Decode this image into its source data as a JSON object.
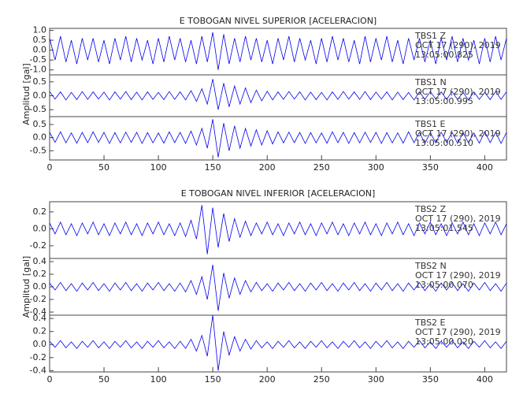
{
  "chart_data": [
    {
      "type": "waveform",
      "title": "E TOBOGAN NIVEL SUPERIOR [ACELERACION]",
      "ylabel": "Amplitud [gal]",
      "xlim": [
        0,
        420
      ],
      "xticks": [
        0,
        50,
        100,
        150,
        200,
        250,
        300,
        350,
        400
      ],
      "x": [
        0,
        5,
        10,
        15,
        20,
        25,
        30,
        35,
        40,
        45,
        50,
        55,
        60,
        65,
        70,
        75,
        80,
        85,
        90,
        95,
        100,
        105,
        110,
        115,
        120,
        125,
        130,
        135,
        140,
        145,
        150,
        155,
        160,
        165,
        170,
        175,
        180,
        185,
        190,
        195,
        200,
        205,
        210,
        215,
        220,
        225,
        230,
        235,
        240,
        245,
        250,
        255,
        260,
        265,
        270,
        275,
        280,
        285,
        290,
        295,
        300,
        305,
        310,
        315,
        320,
        325,
        330,
        335,
        340,
        345,
        350,
        355,
        360,
        365,
        370,
        375,
        380,
        385,
        390,
        395,
        400,
        405,
        410,
        415,
        420
      ],
      "traces": [
        {
          "labels": [
            "TBS1 Z",
            "OCT 17 (290), 2019",
            "13:05:00.825"
          ],
          "color": "#0000ee",
          "ylim": [
            -1.25,
            1.1
          ],
          "yticks": [
            {
              "value": 1.0,
              "label": "1.0"
            },
            0.5,
            {
              "value": 0.0,
              "label": "0.0"
            },
            -0.5,
            {
              "value": -1.0,
              "label": "-1.0"
            }
          ],
          "values": [
            0.6,
            -0.5,
            0.7,
            -0.6,
            0.5,
            -0.7,
            0.6,
            -0.5,
            0.6,
            -0.6,
            0.5,
            -0.7,
            0.6,
            -0.5,
            0.7,
            -0.6,
            0.6,
            -0.5,
            0.5,
            -0.7,
            0.6,
            -0.6,
            0.7,
            -0.5,
            0.6,
            -0.6,
            0.5,
            -0.7,
            0.7,
            -0.6,
            0.9,
            -1.0,
            0.8,
            -0.7,
            0.6,
            -0.6,
            0.7,
            -0.5,
            0.6,
            -0.6,
            0.5,
            -0.7,
            0.6,
            -0.5,
            0.7,
            -0.6,
            0.6,
            -0.5,
            0.5,
            -0.7,
            0.6,
            -0.6,
            0.7,
            -0.5,
            0.6,
            -0.6,
            0.5,
            -0.7,
            0.7,
            -0.6,
            0.6,
            -0.5,
            0.7,
            -0.6,
            0.5,
            -0.7,
            0.6,
            -0.5,
            0.6,
            -0.6,
            0.5,
            -0.7,
            0.6,
            -0.5,
            0.7,
            -0.6,
            0.6,
            -0.5,
            0.5,
            -0.7,
            0.6,
            -0.6,
            0.7,
            -0.5,
            0.6
          ]
        },
        {
          "labels": [
            "TBS1 N",
            "OCT 17 (290), 2019",
            "13:05:00.995"
          ],
          "color": "#0000ee",
          "ylim": [
            -0.75,
            0.75
          ],
          "yticks": [
            0.5,
            {
              "value": 0.0,
              "label": "0.0"
            },
            -0.5
          ],
          "values": [
            0.15,
            -0.12,
            0.14,
            -0.15,
            0.12,
            -0.14,
            0.15,
            -0.13,
            0.14,
            -0.12,
            0.13,
            -0.15,
            0.14,
            -0.12,
            0.15,
            -0.14,
            0.13,
            -0.15,
            0.14,
            -0.13,
            0.12,
            -0.14,
            0.15,
            -0.13,
            0.14,
            -0.15,
            0.18,
            -0.2,
            0.25,
            -0.3,
            0.6,
            -0.5,
            0.45,
            -0.4,
            0.35,
            -0.3,
            0.28,
            -0.25,
            0.2,
            -0.18,
            0.16,
            -0.15,
            0.14,
            -0.13,
            0.15,
            -0.12,
            0.14,
            -0.15,
            0.13,
            -0.14,
            0.12,
            -0.15,
            0.14,
            -0.13,
            0.15,
            -0.12,
            0.14,
            -0.13,
            0.15,
            -0.14,
            0.13,
            -0.12,
            0.14,
            -0.15,
            0.13,
            -0.14,
            0.12,
            -0.15,
            0.14,
            -0.13,
            0.15,
            -0.12,
            0.14,
            -0.13,
            0.15,
            -0.14,
            0.12,
            -0.15,
            0.14,
            -0.13,
            0.12,
            -0.14,
            0.15,
            -0.13,
            0.14
          ]
        },
        {
          "labels": [
            "TBS1 E",
            "OCT 17 (290), 2019",
            "13:05:00.510"
          ],
          "color": "#0000ee",
          "ylim": [
            -0.85,
            0.8
          ],
          "yticks": [
            0.5,
            {
              "value": 0.0,
              "label": "0.0"
            },
            -0.5
          ],
          "values": [
            0.2,
            -0.18,
            0.22,
            -0.2,
            0.18,
            -0.21,
            0.2,
            -0.19,
            0.22,
            -0.18,
            0.2,
            -0.22,
            0.19,
            -0.2,
            0.21,
            -0.18,
            0.2,
            -0.22,
            0.19,
            -0.2,
            0.18,
            -0.21,
            0.22,
            -0.19,
            0.2,
            -0.22,
            0.25,
            -0.28,
            0.35,
            -0.4,
            0.7,
            -0.75,
            0.55,
            -0.5,
            0.45,
            -0.4,
            0.35,
            -0.32,
            0.3,
            -0.28,
            0.26,
            -0.24,
            0.22,
            -0.2,
            0.21,
            -0.19,
            0.2,
            -0.22,
            0.19,
            -0.2,
            0.18,
            -0.21,
            0.22,
            -0.19,
            0.2,
            -0.22,
            0.19,
            -0.2,
            0.21,
            -0.18,
            0.2,
            -0.22,
            0.19,
            -0.2,
            0.18,
            -0.21,
            0.22,
            -0.19,
            0.2,
            -0.22,
            0.19,
            -0.2,
            0.21,
            -0.18,
            0.2,
            -0.22,
            0.19,
            -0.2,
            0.18,
            -0.21,
            0.22,
            -0.19,
            0.2,
            -0.22,
            0.2
          ]
        }
      ]
    },
    {
      "type": "waveform",
      "title": "E TOBOGAN NIVEL INFERIOR [ACELERACION]",
      "ylabel": "Amplitud [gal]",
      "xlim": [
        0,
        420
      ],
      "xticks": [
        0,
        50,
        100,
        150,
        200,
        250,
        300,
        350,
        400
      ],
      "x": [
        0,
        5,
        10,
        15,
        20,
        25,
        30,
        35,
        40,
        45,
        50,
        55,
        60,
        65,
        70,
        75,
        80,
        85,
        90,
        95,
        100,
        105,
        110,
        115,
        120,
        125,
        130,
        135,
        140,
        145,
        150,
        155,
        160,
        165,
        170,
        175,
        180,
        185,
        190,
        195,
        200,
        205,
        210,
        215,
        220,
        225,
        230,
        235,
        240,
        245,
        250,
        255,
        260,
        265,
        270,
        275,
        280,
        285,
        290,
        295,
        300,
        305,
        310,
        315,
        320,
        325,
        330,
        335,
        340,
        345,
        350,
        355,
        360,
        365,
        370,
        375,
        380,
        385,
        390,
        395,
        400,
        405,
        410,
        415,
        420
      ],
      "traces": [
        {
          "labels": [
            "TBS2 Z",
            "OCT 17 (290), 2019",
            "13:05:01.545"
          ],
          "color": "#0000ee",
          "ylim": [
            -0.35,
            0.32
          ],
          "yticks": [
            0.2,
            {
              "value": 0.0,
              "label": "0.0"
            },
            -0.2
          ],
          "values": [
            0.07,
            -0.06,
            0.08,
            -0.07,
            0.06,
            -0.08,
            0.07,
            -0.06,
            0.08,
            -0.07,
            0.06,
            -0.08,
            0.07,
            -0.06,
            0.08,
            -0.07,
            0.06,
            -0.08,
            0.07,
            -0.06,
            0.08,
            -0.07,
            0.06,
            -0.08,
            0.07,
            -0.09,
            0.1,
            -0.12,
            0.28,
            -0.3,
            0.25,
            -0.22,
            0.18,
            -0.15,
            0.12,
            -0.1,
            0.09,
            -0.08,
            0.07,
            -0.06,
            0.08,
            -0.07,
            0.06,
            -0.08,
            0.07,
            -0.06,
            0.08,
            -0.07,
            0.06,
            -0.08,
            0.07,
            -0.06,
            0.08,
            -0.07,
            0.06,
            -0.08,
            0.07,
            -0.06,
            0.08,
            -0.07,
            0.06,
            -0.08,
            0.07,
            -0.06,
            0.08,
            -0.07,
            0.06,
            -0.08,
            0.07,
            -0.06,
            0.08,
            -0.07,
            0.06,
            -0.08,
            0.07,
            -0.06,
            0.08,
            -0.07,
            0.06,
            -0.08,
            0.07,
            -0.06,
            0.08,
            -0.07,
            0.06
          ]
        },
        {
          "labels": [
            "TBS2 N",
            "OCT 17 (290), 2019",
            "13:05:00.070"
          ],
          "color": "#0000ee",
          "ylim": [
            -0.45,
            0.45
          ],
          "yticks": [
            0.4,
            0.2,
            {
              "value": 0.0,
              "label": "0.0"
            },
            -0.2,
            -0.4
          ],
          "values": [
            0.06,
            -0.05,
            0.07,
            -0.06,
            0.05,
            -0.07,
            0.06,
            -0.05,
            0.07,
            -0.06,
            0.05,
            -0.07,
            0.06,
            -0.05,
            0.07,
            -0.06,
            0.05,
            -0.07,
            0.06,
            -0.05,
            0.07,
            -0.06,
            0.05,
            -0.07,
            0.06,
            -0.08,
            0.1,
            -0.12,
            0.16,
            -0.2,
            0.35,
            -0.38,
            0.22,
            -0.18,
            0.14,
            -0.12,
            0.1,
            -0.08,
            0.07,
            -0.06,
            0.05,
            -0.07,
            0.06,
            -0.05,
            0.07,
            -0.06,
            0.05,
            -0.07,
            0.06,
            -0.05,
            0.07,
            -0.06,
            0.05,
            -0.07,
            0.06,
            -0.05,
            0.07,
            -0.06,
            0.05,
            -0.07,
            0.06,
            -0.05,
            0.07,
            -0.06,
            0.05,
            -0.07,
            0.06,
            -0.05,
            0.07,
            -0.06,
            0.05,
            -0.07,
            0.06,
            -0.05,
            0.07,
            -0.06,
            0.05,
            -0.07,
            0.06,
            -0.05,
            0.07,
            -0.06,
            0.05,
            -0.07,
            0.06
          ]
        },
        {
          "labels": [
            "TBS2 E",
            "OCT 17 (290), 2019",
            "13:05:00.020"
          ],
          "color": "#0000ee",
          "ylim": [
            -0.42,
            0.45
          ],
          "yticks": [
            0.4,
            0.2,
            {
              "value": 0.0,
              "label": "0.0"
            },
            -0.2,
            -0.4
          ],
          "values": [
            0.05,
            -0.04,
            0.06,
            -0.05,
            0.04,
            -0.06,
            0.05,
            -0.04,
            0.06,
            -0.05,
            0.04,
            -0.06,
            0.05,
            -0.04,
            0.06,
            -0.05,
            0.04,
            -0.06,
            0.05,
            -0.04,
            0.06,
            -0.05,
            0.04,
            -0.06,
            0.05,
            -0.06,
            0.08,
            -0.1,
            0.14,
            -0.18,
            0.45,
            -0.4,
            0.2,
            -0.16,
            0.12,
            -0.1,
            0.08,
            -0.07,
            0.06,
            -0.05,
            0.04,
            -0.06,
            0.05,
            -0.04,
            0.06,
            -0.05,
            0.04,
            -0.06,
            0.05,
            -0.04,
            0.06,
            -0.05,
            0.04,
            -0.06,
            0.05,
            -0.04,
            0.06,
            -0.05,
            0.04,
            -0.06,
            0.05,
            -0.04,
            0.06,
            -0.05,
            0.04,
            -0.06,
            0.05,
            -0.04,
            0.06,
            -0.05,
            0.04,
            -0.06,
            0.05,
            -0.04,
            0.06,
            -0.05,
            0.04,
            -0.06,
            0.05,
            -0.04,
            0.06,
            -0.05,
            0.04,
            -0.06,
            0.05
          ]
        }
      ]
    }
  ]
}
